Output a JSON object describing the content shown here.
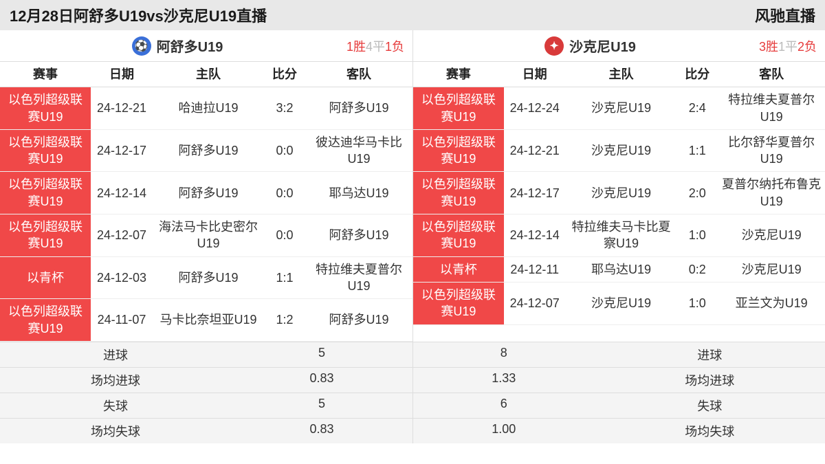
{
  "colors": {
    "comp_bg": "#f04848",
    "comp_fg": "#ffffff",
    "header_bg": "#e8e8e8",
    "border": "#dddddd",
    "record_red": "#e63b3b",
    "record_gray": "#bbbbbb",
    "stat_bg": "#f4f4f4"
  },
  "topbar": {
    "title": "12月28日阿舒多U19vs沙克尼U19直播",
    "brand": "风驰直播"
  },
  "columns": {
    "comp": "赛事",
    "date": "日期",
    "home": "主队",
    "score": "比分",
    "away": "客队"
  },
  "left": {
    "team_name": "阿舒多U19",
    "record_win": "1胜",
    "record_draw": "4平",
    "record_lose": "1负",
    "matches": [
      {
        "comp": "以色列超级联赛U19",
        "date": "24-12-21",
        "home": "哈迪拉U19",
        "score": "3:2",
        "away": "阿舒多U19"
      },
      {
        "comp": "以色列超级联赛U19",
        "date": "24-12-17",
        "home": "阿舒多U19",
        "score": "0:0",
        "away": "彼达迪华马卡比U19"
      },
      {
        "comp": "以色列超级联赛U19",
        "date": "24-12-14",
        "home": "阿舒多U19",
        "score": "0:0",
        "away": "耶乌达U19"
      },
      {
        "comp": "以色列超级联赛U19",
        "date": "24-12-07",
        "home": "海法马卡比史密尔U19",
        "score": "0:0",
        "away": "阿舒多U19"
      },
      {
        "comp": "以青杯",
        "date": "24-12-03",
        "home": "阿舒多U19",
        "score": "1:1",
        "away": "特拉维夫夏普尔U19"
      },
      {
        "comp": "以色列超级联赛U19",
        "date": "24-11-07",
        "home": "马卡比奈坦亚U19",
        "score": "1:2",
        "away": "阿舒多U19"
      }
    ],
    "stats": [
      {
        "label": "进球",
        "value": "5"
      },
      {
        "label": "场均进球",
        "value": "0.83"
      },
      {
        "label": "失球",
        "value": "5"
      },
      {
        "label": "场均失球",
        "value": "0.83"
      }
    ]
  },
  "right": {
    "team_name": "沙克尼U19",
    "record_win": "3胜",
    "record_draw": "1平",
    "record_lose": "2负",
    "matches": [
      {
        "comp": "以色列超级联赛U19",
        "date": "24-12-24",
        "home": "沙克尼U19",
        "score": "2:4",
        "away": "特拉维夫夏普尔U19"
      },
      {
        "comp": "以色列超级联赛U19",
        "date": "24-12-21",
        "home": "沙克尼U19",
        "score": "1:1",
        "away": "比尔舒华夏普尔U19"
      },
      {
        "comp": "以色列超级联赛U19",
        "date": "24-12-17",
        "home": "沙克尼U19",
        "score": "2:0",
        "away": "夏普尔纳托布鲁克U19"
      },
      {
        "comp": "以色列超级联赛U19",
        "date": "24-12-14",
        "home": "特拉维夫马卡比夏察U19",
        "score": "1:0",
        "away": "沙克尼U19"
      },
      {
        "comp": "以青杯",
        "date": "24-12-11",
        "home": "耶乌达U19",
        "score": "0:2",
        "away": "沙克尼U19"
      },
      {
        "comp": "以色列超级联赛U19",
        "date": "24-12-07",
        "home": "沙克尼U19",
        "score": "1:0",
        "away": "亚兰文为U19"
      }
    ],
    "stats": [
      {
        "label": "进球",
        "value": "8"
      },
      {
        "label": "场均进球",
        "value": "1.33"
      },
      {
        "label": "失球",
        "value": "6"
      },
      {
        "label": "场均失球",
        "value": "1.00"
      }
    ]
  }
}
